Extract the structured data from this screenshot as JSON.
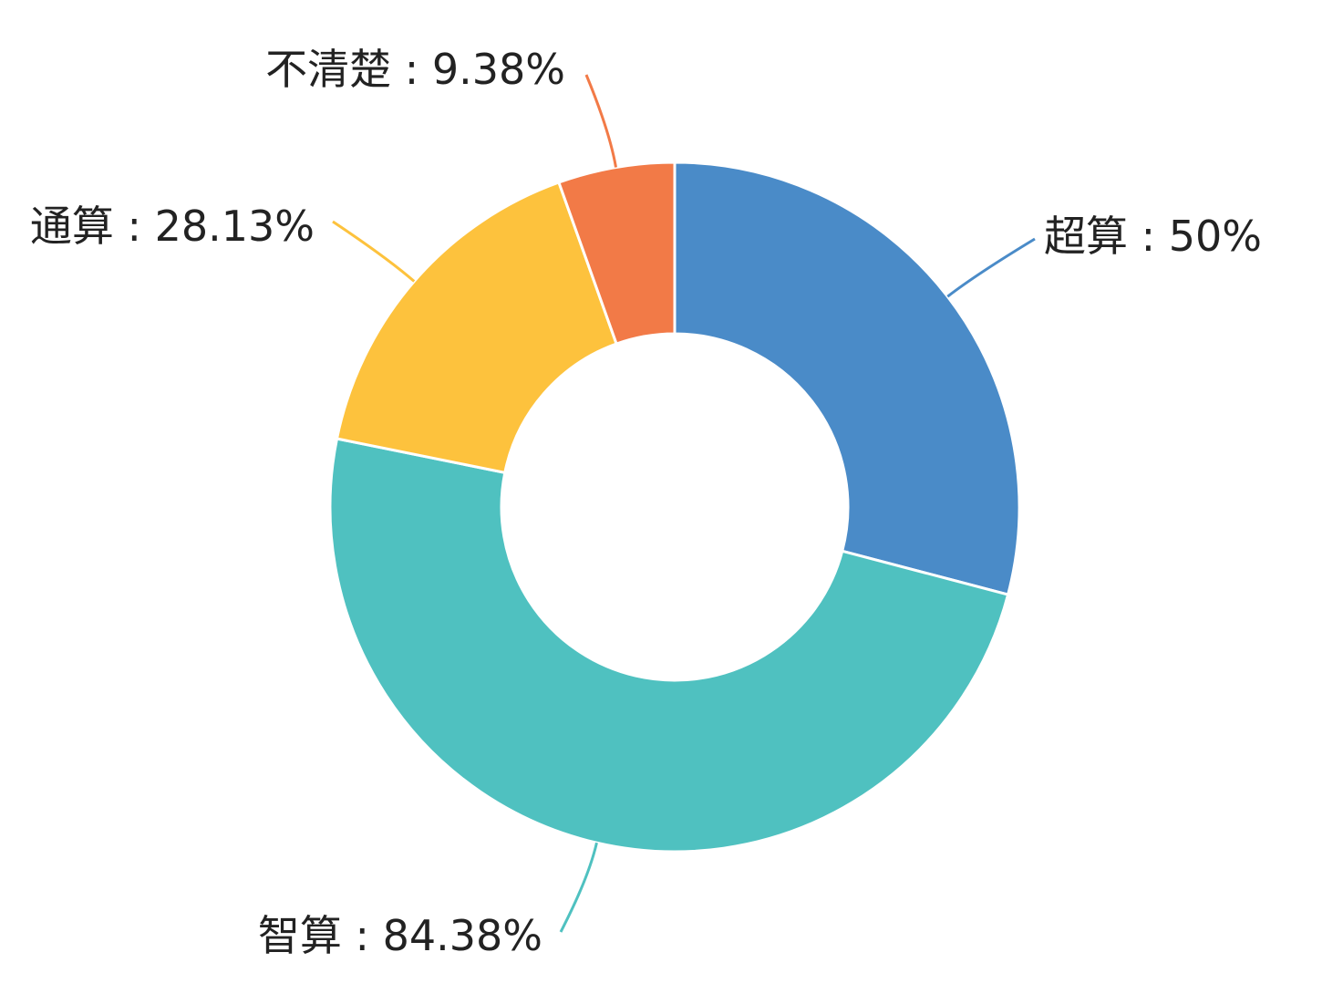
{
  "chart_data": {
    "type": "pie",
    "variant": "donut",
    "title": "",
    "slices": [
      {
        "label": "超算",
        "value": 50,
        "display": "超算 : 50%",
        "color": "#4a8bc8"
      },
      {
        "label": "智算",
        "value": 84.38,
        "display": "智算 : 84.38%",
        "color": "#4fc1c0"
      },
      {
        "label": "通算",
        "value": 28.13,
        "display": "通算 : 28.13%",
        "color": "#fdc23d"
      },
      {
        "label": "不清楚",
        "value": 9.38,
        "display": "不清楚 : 9.38%",
        "color": "#f27a47"
      }
    ],
    "legend": "none"
  }
}
